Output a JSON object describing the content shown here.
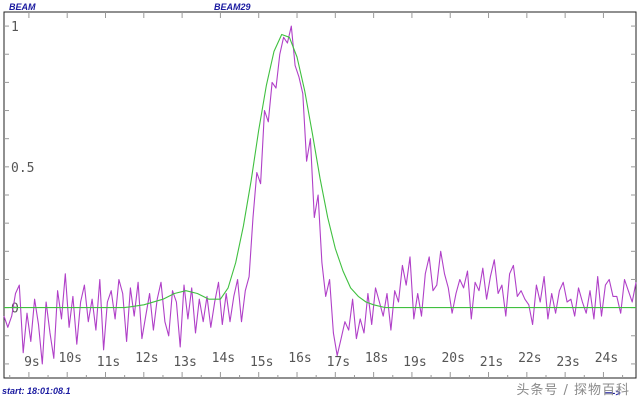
{
  "header": {
    "left_label": "BEAM",
    "center_label": "BEAM29"
  },
  "footer": {
    "start_label": "start:",
    "start_time": "18:01:08.1",
    "nav_label": "ᅳ->"
  },
  "watermark": {
    "text": "头条号 / 探物百科"
  },
  "colors": {
    "measured": "#b040c8",
    "fit": "#40c040",
    "axes": "#222222",
    "ticks": "#999999",
    "labels": "#555555"
  },
  "chart_data": {
    "type": "line",
    "title": "",
    "xlabel": "",
    "ylabel": "",
    "xlim": [
      8.35,
      24.85
    ],
    "ylim": [
      -0.25,
      1.05
    ],
    "x_tick_values": [
      9,
      10,
      11,
      12,
      13,
      14,
      15,
      16,
      17,
      18,
      19,
      20,
      21,
      22,
      23,
      24
    ],
    "x_tick_labels": [
      "9s",
      "10s",
      "11s",
      "12s",
      "13s",
      "14s",
      "15s",
      "16s",
      "17s",
      "18s",
      "19s",
      "20s",
      "21s",
      "22s",
      "23s",
      "24s"
    ],
    "y_tick_values": [
      1,
      0.5,
      0
    ],
    "y_tick_labels": [
      "1",
      "0.5",
      "0"
    ],
    "grid": false,
    "legend": "none",
    "series": [
      {
        "color": "#b040c8",
        "x": [
          8.35,
          8.45,
          8.55,
          8.65,
          8.75,
          8.85,
          8.95,
          9.05,
          9.15,
          9.25,
          9.35,
          9.45,
          9.55,
          9.65,
          9.75,
          9.85,
          9.95,
          10.05,
          10.15,
          10.25,
          10.35,
          10.45,
          10.55,
          10.65,
          10.75,
          10.85,
          10.95,
          11.05,
          11.15,
          11.25,
          11.35,
          11.45,
          11.55,
          11.65,
          11.75,
          11.85,
          11.95,
          12.05,
          12.15,
          12.25,
          12.35,
          12.45,
          12.55,
          12.65,
          12.75,
          12.85,
          12.95,
          13.05,
          13.15,
          13.25,
          13.35,
          13.45,
          13.55,
          13.65,
          13.75,
          13.85,
          13.95,
          14.05,
          14.15,
          14.25,
          14.35,
          14.45,
          14.55,
          14.65,
          14.75,
          14.85,
          14.95,
          15.05,
          15.15,
          15.25,
          15.35,
          15.45,
          15.55,
          15.65,
          15.75,
          15.85,
          15.95,
          16.05,
          16.15,
          16.25,
          16.35,
          16.45,
          16.55,
          16.65,
          16.75,
          16.85,
          16.95,
          17.05,
          17.15,
          17.25,
          17.35,
          17.45,
          17.55,
          17.65,
          17.75,
          17.85,
          17.95,
          18.05,
          18.15,
          18.25,
          18.35,
          18.45,
          18.55,
          18.65,
          18.75,
          18.85,
          18.95,
          19.05,
          19.15,
          19.25,
          19.35,
          19.45,
          19.55,
          19.65,
          19.75,
          19.85,
          19.95,
          20.05,
          20.15,
          20.25,
          20.35,
          20.45,
          20.55,
          20.65,
          20.75,
          20.85,
          20.95,
          21.05,
          21.15,
          21.25,
          21.35,
          21.45,
          21.55,
          21.65,
          21.75,
          21.85,
          21.95,
          22.05,
          22.15,
          22.25,
          22.35,
          22.45,
          22.55,
          22.65,
          22.75,
          22.85,
          22.95,
          23.05,
          23.15,
          23.25,
          23.35,
          23.45,
          23.55,
          23.65,
          23.75,
          23.85,
          23.95,
          24.05,
          24.15,
          24.25,
          24.35,
          24.45,
          24.55,
          24.65,
          24.75,
          24.85
        ],
        "y": [
          -0.03,
          -0.07,
          -0.03,
          0.05,
          0.08,
          -0.16,
          -0.02,
          -0.12,
          0.03,
          -0.06,
          -0.2,
          0.02,
          -0.09,
          -0.18,
          0.06,
          -0.04,
          0.12,
          -0.07,
          0.04,
          -0.13,
          0.02,
          0.08,
          -0.05,
          0.03,
          -0.08,
          0.1,
          -0.15,
          0.02,
          0.06,
          -0.04,
          0.1,
          0.05,
          -0.12,
          0.07,
          -0.03,
          0.09,
          -0.11,
          -0.03,
          0.05,
          -0.08,
          0.03,
          0.09,
          -0.05,
          -0.1,
          0.06,
          0.02,
          -0.14,
          0.08,
          -0.04,
          0.07,
          -0.09,
          0.03,
          -0.05,
          0.04,
          -0.07,
          0.02,
          0.09,
          -0.06,
          0.05,
          -0.05,
          0.04,
          0.1,
          -0.05,
          0.06,
          0.11,
          0.32,
          0.48,
          0.44,
          0.7,
          0.66,
          0.8,
          0.78,
          0.9,
          0.96,
          0.94,
          1.0,
          0.86,
          0.82,
          0.76,
          0.52,
          0.6,
          0.32,
          0.4,
          0.16,
          0.04,
          0.1,
          -0.09,
          -0.17,
          -0.11,
          -0.05,
          -0.08,
          0.03,
          -0.11,
          -0.04,
          -0.09,
          0.05,
          -0.06,
          0.07,
          0.02,
          -0.03,
          0.05,
          -0.08,
          0.06,
          0.02,
          0.15,
          0.08,
          0.18,
          -0.04,
          0.05,
          -0.03,
          0.12,
          0.18,
          0.06,
          0.08,
          0.2,
          0.12,
          0.07,
          -0.02,
          0.05,
          0.1,
          0.07,
          0.13,
          -0.04,
          0.09,
          0.06,
          0.14,
          0.03,
          0.11,
          0.17,
          0.05,
          0.08,
          -0.03,
          0.12,
          0.15,
          0.04,
          0.06,
          0.03,
          0.01,
          -0.06,
          0.08,
          0.02,
          0.11,
          -0.04,
          0.05,
          -0.02,
          0.06,
          0.09,
          0.02,
          0.03,
          -0.03,
          0.07,
          0.02,
          -0.02,
          0.06,
          -0.04,
          0.11,
          -0.03,
          0.08,
          0.1,
          0.04,
          0.04,
          -0.02,
          0.1,
          0.06,
          0.02,
          0.09
        ]
      },
      {
        "color": "#40c040",
        "x": [
          8.35,
          9,
          9.5,
          10,
          10.5,
          11,
          11.5,
          12,
          12.5,
          12.8,
          13.1,
          13.4,
          13.7,
          14,
          14.2,
          14.4,
          14.6,
          14.8,
          15,
          15.2,
          15.4,
          15.6,
          15.8,
          16,
          16.2,
          16.4,
          16.6,
          16.8,
          17,
          17.2,
          17.4,
          17.6,
          17.8,
          18,
          18.3,
          18.6,
          19,
          19.5,
          20,
          21,
          22,
          23,
          24,
          24.85
        ],
        "y": [
          0.0,
          0.0,
          0.0,
          0.0,
          0.0,
          0.0,
          0.0,
          0.01,
          0.03,
          0.05,
          0.06,
          0.05,
          0.03,
          0.03,
          0.07,
          0.16,
          0.29,
          0.45,
          0.63,
          0.79,
          0.91,
          0.97,
          0.96,
          0.89,
          0.77,
          0.62,
          0.46,
          0.32,
          0.21,
          0.13,
          0.07,
          0.04,
          0.02,
          0.01,
          0.0,
          0.0,
          0.0,
          0.0,
          0.0,
          0.0,
          0.0,
          0.0,
          0.0,
          0.0
        ]
      }
    ]
  }
}
